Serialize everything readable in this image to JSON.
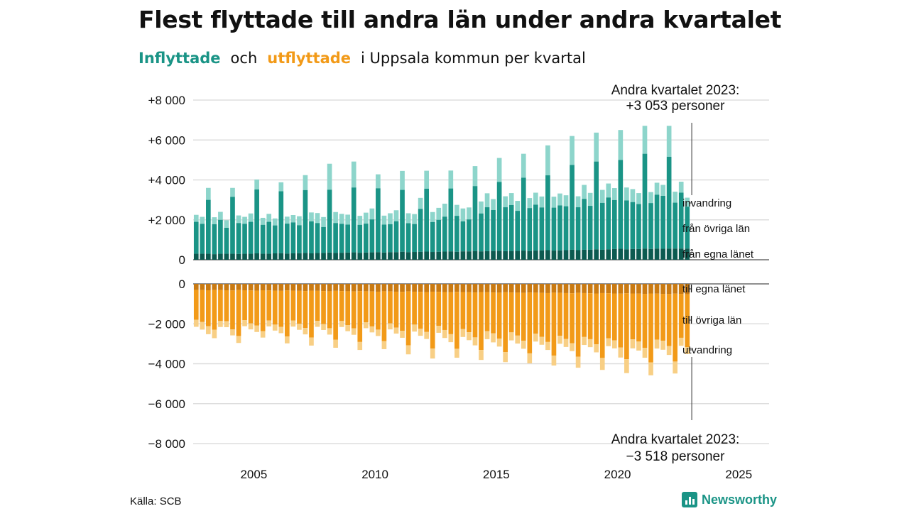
{
  "title": "Flest flyttade till andra län under andra kvartalet",
  "subtitle": {
    "part1": "Inflyttade",
    "part2": "och",
    "part3": "utflyttade",
    "part4": "i Uppsala kommun per kvartal"
  },
  "source": "Källa: SCB",
  "brand": "Newsworthy",
  "colors": {
    "in_local": "#0c5a50",
    "in_other": "#1a9486",
    "in_immig": "#8dd5cb",
    "out_local": "#c97a12",
    "out_other": "#f29a18",
    "out_emig": "#f8cf85",
    "grid": "#dddddd"
  },
  "chart_data": {
    "type": "bar",
    "stacked": true,
    "x_axis": {
      "ticks": [
        "2005",
        "2010",
        "2015",
        "2020",
        "2025"
      ],
      "range": [
        2003,
        2026.75
      ]
    },
    "top_panel": {
      "ylim": [
        0,
        8000
      ],
      "ticks": [
        "+8 000",
        "+6 000",
        "+4 000",
        "+2 000",
        "0"
      ],
      "tick_values": [
        8000,
        6000,
        4000,
        2000,
        0
      ],
      "series_labels": [
        "invandring",
        "från övriga län",
        "från egna länet"
      ],
      "annotation": [
        "Andra kvartalet 2023:",
        "+3 053 personer"
      ]
    },
    "bottom_panel": {
      "ylim": [
        -8000,
        0
      ],
      "ticks": [
        "0",
        "−2 000",
        "−4 000",
        "−6 000",
        "−8 000"
      ],
      "tick_values": [
        0,
        -2000,
        -4000,
        -6000,
        -8000
      ],
      "series_labels": [
        "till egna länet",
        "till övriga län",
        "utvandring"
      ],
      "annotation": [
        "Andra kvartalet 2023:",
        "−3 518 personer"
      ]
    },
    "quarters_start": "2003 Q1",
    "inflow": {
      "egna_lanet": [
        300,
        300,
        300,
        280,
        300,
        300,
        300,
        290,
        300,
        300,
        320,
        300,
        300,
        320,
        330,
        310,
        320,
        330,
        340,
        320,
        340,
        340,
        360,
        340,
        350,
        360,
        370,
        350,
        360,
        370,
        380,
        360,
        380,
        380,
        400,
        380,
        390,
        400,
        410,
        390,
        400,
        410,
        420,
        400,
        420,
        420,
        440,
        420,
        430,
        440,
        450,
        430,
        440,
        450,
        460,
        440,
        460,
        470,
        480,
        460,
        470,
        480,
        500,
        480,
        500,
        500,
        520,
        500,
        520,
        540,
        550,
        520,
        540,
        540,
        560,
        540,
        560,
        550,
        560,
        560,
        560,
        560
      ],
      "ovriga_lan": [
        1600,
        1500,
        2700,
        1500,
        1700,
        1300,
        2850,
        1550,
        1500,
        1600,
        3200,
        1450,
        1600,
        1400,
        3100,
        1500,
        1550,
        1400,
        3150,
        1600,
        1500,
        1300,
        3150,
        1500,
        1450,
        1400,
        3250,
        1400,
        1450,
        1650,
        3200,
        1400,
        1400,
        1550,
        3100,
        1450,
        1400,
        2150,
        3150,
        1500,
        1600,
        1750,
        3150,
        1800,
        1500,
        1600,
        3250,
        1900,
        2200,
        2050,
        3450,
        2200,
        2300,
        2000,
        3650,
        2150,
        2300,
        2150,
        3750,
        2150,
        2250,
        2200,
        4250,
        2150,
        2550,
        2200,
        4400,
        2350,
        2600,
        2450,
        4450,
        2450,
        2350,
        2250,
        4750,
        2300,
        2700,
        2650,
        4600,
        2300,
        2800,
        2100
      ],
      "invandring": [
        350,
        350,
        600,
        350,
        400,
        380,
        450,
        380,
        350,
        420,
        500,
        350,
        400,
        350,
        450,
        350,
        370,
        450,
        750,
        450,
        500,
        500,
        1300,
        550,
        500,
        500,
        1300,
        450,
        550,
        550,
        700,
        450,
        550,
        550,
        950,
        500,
        500,
        550,
        900,
        500,
        600,
        650,
        900,
        550,
        650,
        600,
        1000,
        600,
        700,
        550,
        1200,
        550,
        600,
        500,
        1200,
        500,
        600,
        550,
        1500,
        550,
        600,
        550,
        1450,
        550,
        700,
        650,
        1450,
        650,
        700,
        600,
        1500,
        650,
        650,
        550,
        1400,
        550,
        600,
        550,
        1550,
        550,
        550,
        450
      ]
    },
    "outflow": {
      "egna_lanet": [
        300,
        310,
        320,
        300,
        310,
        320,
        330,
        310,
        320,
        330,
        340,
        320,
        330,
        340,
        350,
        330,
        340,
        350,
        360,
        340,
        350,
        360,
        370,
        350,
        360,
        370,
        380,
        360,
        370,
        380,
        390,
        370,
        380,
        390,
        400,
        380,
        390,
        400,
        410,
        390,
        400,
        410,
        420,
        400,
        410,
        420,
        430,
        410,
        420,
        430,
        440,
        420,
        430,
        440,
        450,
        430,
        440,
        450,
        460,
        440,
        450,
        460,
        470,
        450,
        460,
        470,
        480,
        460,
        470,
        480,
        490,
        470,
        480,
        490,
        500,
        480,
        490,
        500,
        510,
        490,
        500,
        520
      ],
      "ovriga_lan": [
        1500,
        1600,
        1800,
        2000,
        1550,
        1550,
        1950,
        2300,
        1500,
        1650,
        1750,
        2050,
        1500,
        1700,
        1800,
        2300,
        1500,
        1650,
        1850,
        2350,
        1500,
        1650,
        1850,
        2450,
        1500,
        1700,
        1850,
        2550,
        1550,
        1750,
        1900,
        2500,
        1600,
        1800,
        1950,
        2700,
        1650,
        1850,
        2000,
        2850,
        1700,
        1900,
        2100,
        2850,
        1850,
        2000,
        2250,
        2900,
        1950,
        2050,
        2300,
        3000,
        2000,
        2150,
        2400,
        3050,
        2050,
        2200,
        2450,
        3150,
        2150,
        2300,
        2500,
        3200,
        2200,
        2300,
        2550,
        3250,
        2250,
        2350,
        2700,
        3300,
        2300,
        2400,
        2700,
        3450,
        2300,
        2350,
        2600,
        3400,
        2200,
        2650
      ],
      "utvandring": [
        350,
        380,
        400,
        420,
        300,
        300,
        300,
        350,
        300,
        300,
        320,
        320,
        300,
        300,
        320,
        350,
        300,
        300,
        320,
        400,
        300,
        300,
        320,
        400,
        300,
        300,
        320,
        400,
        300,
        300,
        320,
        400,
        300,
        300,
        350,
        450,
        350,
        350,
        350,
        500,
        350,
        400,
        400,
        450,
        400,
        400,
        400,
        500,
        400,
        450,
        400,
        500,
        400,
        400,
        400,
        500,
        400,
        400,
        400,
        500,
        400,
        400,
        400,
        550,
        400,
        400,
        400,
        600,
        400,
        400,
        500,
        700,
        450,
        450,
        500,
        650,
        450,
        450,
        450,
        600,
        400,
        350
      ]
    }
  }
}
